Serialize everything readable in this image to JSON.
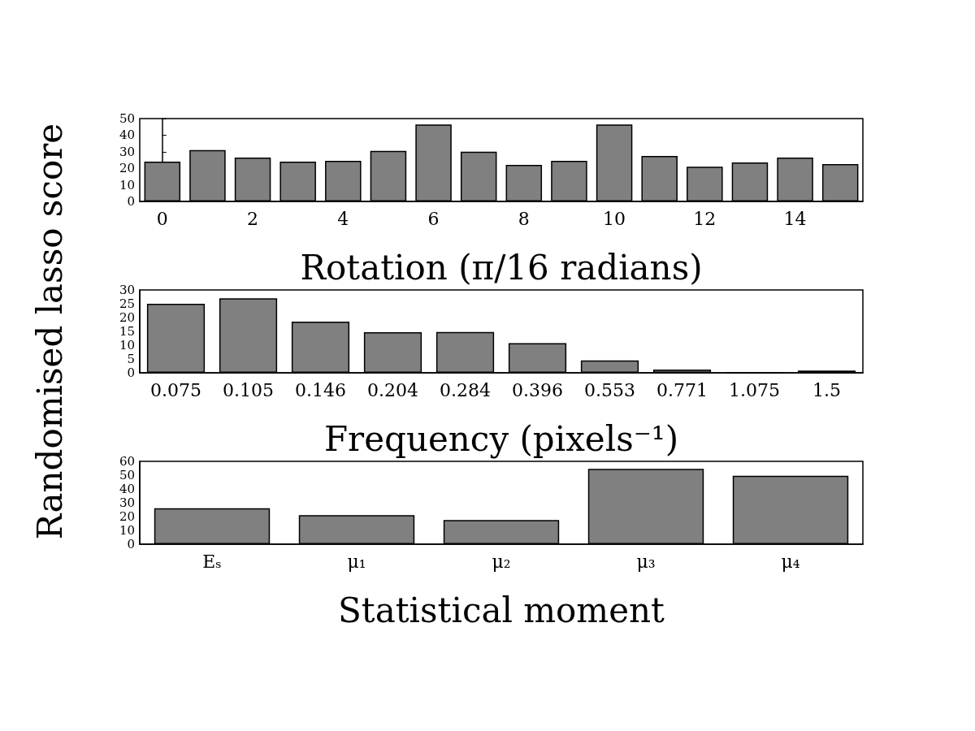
{
  "chart_data": [
    {
      "type": "bar",
      "x": [
        0,
        1,
        2,
        3,
        4,
        5,
        6,
        7,
        8,
        9,
        10,
        11,
        12,
        13,
        14,
        15
      ],
      "values": [
        24,
        31,
        26.5,
        24,
        24.5,
        30.5,
        46.5,
        30,
        22,
        24.5,
        46.5,
        27.5,
        21,
        23.5,
        26.5,
        22.5
      ],
      "color": "#808080",
      "xlim": [
        -0.5,
        15.5
      ],
      "xticks": [
        0,
        2,
        4,
        6,
        8,
        10,
        12,
        14
      ],
      "ylim": [
        0,
        50
      ],
      "yticks": [
        0,
        10,
        20,
        30,
        40,
        50
      ],
      "xlabel": "Rotation (π/16 radians)"
    },
    {
      "type": "bar",
      "categories": [
        "0.075",
        "0.105",
        "0.146",
        "0.204",
        "0.284",
        "0.396",
        "0.553",
        "0.771",
        "1.075",
        "1.5"
      ],
      "values": [
        25,
        27,
        18.5,
        14.7,
        14.8,
        10.7,
        4.5,
        1.2,
        0.2,
        0.8
      ],
      "color": "#808080",
      "ylim": [
        0,
        30
      ],
      "yticks": [
        0,
        5,
        10,
        15,
        20,
        25,
        30
      ],
      "xlabel": "Frequency (pixels⁻¹)",
      "ylabel": "Randomised lasso score"
    },
    {
      "type": "bar",
      "categories": [
        "Eₛ",
        "μ₁",
        "μ₂",
        "μ₃",
        "μ₄"
      ],
      "values": [
        26,
        21,
        17.5,
        54.5,
        49.5
      ],
      "color": "#808080",
      "ylim": [
        0,
        60
      ],
      "yticks": [
        0,
        10,
        20,
        30,
        40,
        50,
        60
      ],
      "xlabel": "Statistical moment"
    }
  ]
}
